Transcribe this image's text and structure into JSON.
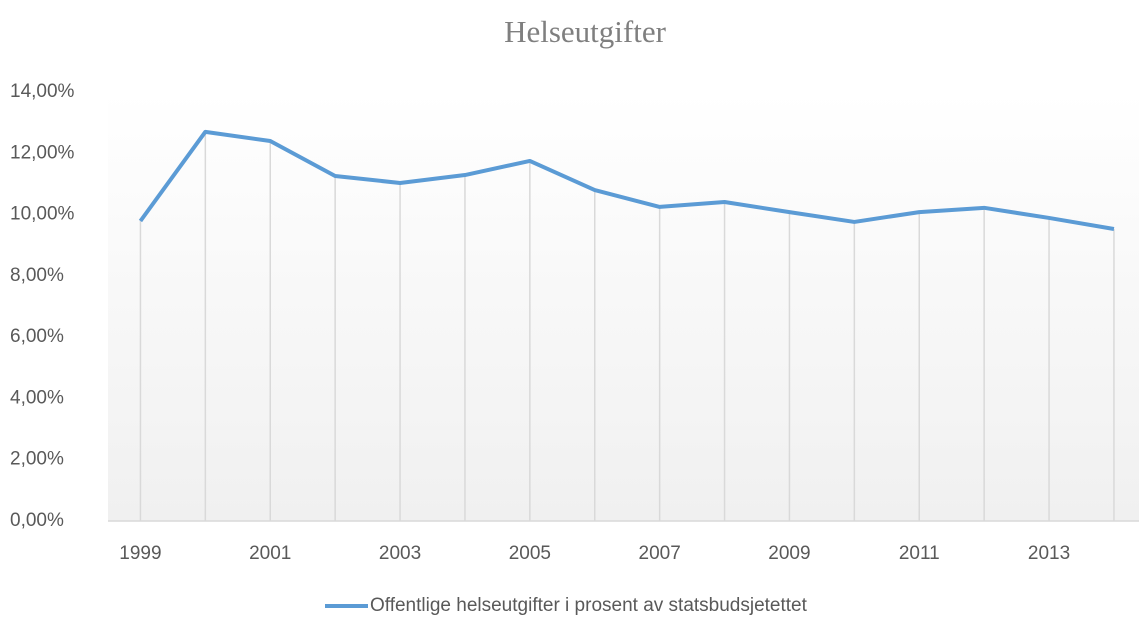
{
  "chart_data": {
    "type": "line",
    "title": "Helseutgifter",
    "categories": [
      "1999",
      null,
      "2001",
      null,
      "2003",
      null,
      "2005",
      null,
      "2007",
      null,
      "2009",
      null,
      "2011",
      null,
      "2013",
      null
    ],
    "series": [
      {
        "name": "Offentlige helseutgifter i prosent av statsbudsjetettet",
        "color": "#5b9bd5",
        "values": [
          9.79,
          12.7,
          12.4,
          11.26,
          11.03,
          11.29,
          11.75,
          10.8,
          10.25,
          10.41,
          10.08,
          9.76,
          10.08,
          10.22,
          9.89,
          9.53
        ]
      }
    ],
    "ylim": [
      0,
      14
    ],
    "yticks": [
      {
        "value": 0,
        "label": "0,00%"
      },
      {
        "value": 2,
        "label": "2,00%"
      },
      {
        "value": 4,
        "label": "4,00%"
      },
      {
        "value": 6,
        "label": "6,00%"
      },
      {
        "value": 8,
        "label": "8,00%"
      },
      {
        "value": 10,
        "label": "10,00%"
      },
      {
        "value": 12,
        "label": "12,00%"
      },
      {
        "value": 14,
        "label": "14,00%"
      }
    ],
    "drop_lines": true,
    "legend": "bottom"
  }
}
